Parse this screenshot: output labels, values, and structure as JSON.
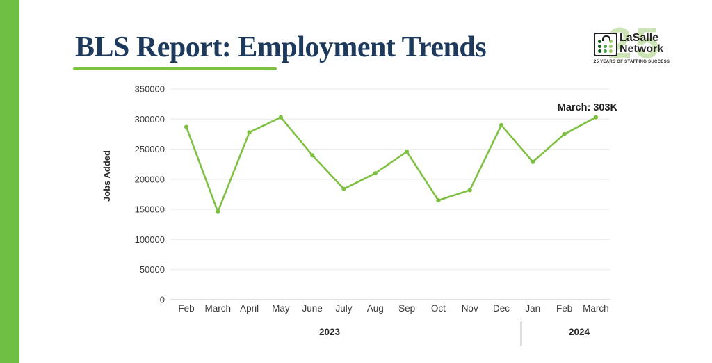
{
  "slide": {
    "title": "BLS Report: Employment Trends",
    "accent_green": "#7ec142",
    "bar_green": "#6fbf44",
    "navy": "#1d3a5c"
  },
  "logo": {
    "watermark": "25",
    "name_line1": "LaSalle",
    "name_line2": "Network",
    "tagline": "25 YEARS OF STAFFING SUCCESS",
    "icon": "briefcase-dots-icon"
  },
  "chart_data": {
    "type": "line",
    "title": "BLS Report: Employment Trends",
    "x": [
      "Feb",
      "March",
      "April",
      "May",
      "June",
      "July",
      "Aug",
      "Sep",
      "Oct",
      "Nov",
      "Dec",
      "Jan",
      "Feb",
      "March"
    ],
    "series": [
      {
        "name": "Jobs Added",
        "values": [
          287000,
          146000,
          278000,
          303000,
          240000,
          184000,
          210000,
          246000,
          165000,
          182000,
          290000,
          229000,
          275000,
          303000
        ]
      }
    ],
    "xlabel": "",
    "ylabel": "Jobs Added",
    "ylim": [
      0,
      350000
    ],
    "yticks": [
      0,
      50000,
      100000,
      150000,
      200000,
      250000,
      300000,
      350000
    ],
    "grid": true,
    "legend": false,
    "annotation": {
      "text": "March: 303K"
    },
    "year_groups": [
      {
        "label": "2023"
      },
      {
        "label": "2024"
      }
    ],
    "line_color": "#7ec142",
    "grid_color": "#e9e9e9",
    "axis_color": "#cfcfcf",
    "text_color": "#3a3a3a"
  }
}
